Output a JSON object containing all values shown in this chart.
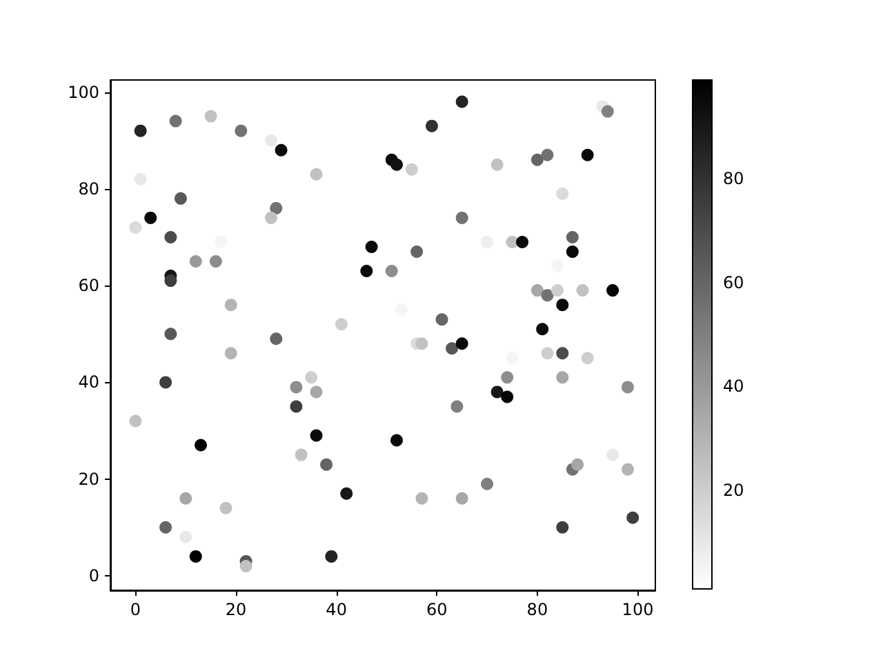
{
  "chart_data": {
    "type": "scatter",
    "marker": "circle",
    "grid": false,
    "xlim": [
      -5,
      103.5
    ],
    "ylim": [
      -3,
      102.5
    ],
    "xticks": [
      0,
      20,
      40,
      60,
      80,
      100
    ],
    "yticks": [
      0,
      20,
      40,
      60,
      80,
      100
    ],
    "clim": [
      1,
      99
    ],
    "cticks": [
      20,
      40,
      60,
      80
    ],
    "x": [
      1,
      8,
      15,
      21,
      29,
      27,
      1,
      36,
      3,
      9,
      0,
      7,
      7,
      7,
      7,
      12,
      16,
      17,
      19,
      19,
      6,
      13,
      0,
      28,
      27,
      28,
      32,
      32,
      33,
      35,
      36,
      36,
      38,
      42,
      39,
      22,
      22,
      12,
      6,
      10,
      10,
      18,
      41,
      46,
      47,
      51,
      52,
      55,
      59,
      65,
      51,
      56,
      53,
      56,
      57,
      61,
      63,
      65,
      64,
      65,
      70,
      72,
      75,
      77,
      80,
      82,
      85,
      87,
      87,
      90,
      93,
      94,
      84,
      80,
      82,
      85,
      84,
      89,
      95,
      81,
      82,
      85,
      90,
      74,
      75,
      72,
      74,
      85,
      98,
      57,
      65,
      70,
      87,
      88,
      95,
      98,
      99,
      85,
      52
    ],
    "values": [
      92,
      94,
      95,
      92,
      88,
      90,
      82,
      83,
      74,
      78,
      72,
      70,
      62,
      61,
      50,
      65,
      65,
      69,
      56,
      46,
      40,
      27,
      32,
      76,
      74,
      49,
      39,
      35,
      25,
      41,
      38,
      29,
      23,
      17,
      4,
      3,
      2,
      4,
      10,
      16,
      8,
      14,
      52,
      63,
      68,
      86,
      85,
      84,
      93,
      98,
      63,
      67,
      55,
      48,
      48,
      53,
      47,
      48,
      35,
      74,
      69,
      85,
      69,
      69,
      86,
      87,
      79,
      70,
      67,
      87,
      97,
      96,
      64,
      59,
      58,
      56,
      59,
      59,
      59,
      51,
      46,
      46,
      45,
      41,
      45,
      38,
      37,
      41,
      39,
      16,
      16,
      19,
      22,
      23,
      25,
      22,
      12,
      10,
      28
    ],
    "cvalues": [
      85,
      55,
      25,
      55,
      95,
      10,
      10,
      25,
      95,
      65,
      15,
      70,
      90,
      75,
      65,
      40,
      45,
      5,
      30,
      30,
      75,
      98,
      25,
      55,
      25,
      60,
      45,
      75,
      25,
      20,
      35,
      95,
      60,
      90,
      85,
      65,
      25,
      98,
      60,
      35,
      10,
      25,
      20,
      95,
      95,
      95,
      92,
      20,
      80,
      85,
      45,
      60,
      5,
      15,
      25,
      60,
      65,
      95,
      50,
      55,
      8,
      25,
      25,
      95,
      60,
      55,
      15,
      60,
      95,
      95,
      10,
      50,
      5,
      35,
      55,
      95,
      20,
      25,
      98,
      95,
      20,
      70,
      20,
      45,
      5,
      90,
      98,
      35,
      45,
      30,
      35,
      50,
      55,
      35,
      10,
      30,
      75,
      75,
      95
    ]
  }
}
